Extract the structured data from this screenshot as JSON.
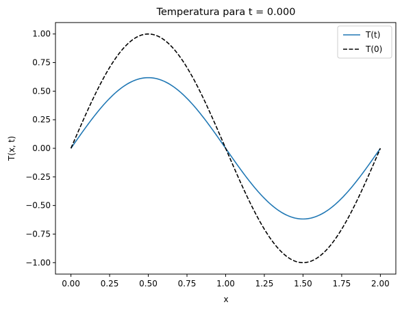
{
  "chart_data": {
    "type": "line",
    "title": "Temperatura para t = 0.000",
    "xlabel": "x",
    "ylabel": "T(x, t)",
    "xlim": [
      -0.1,
      2.1
    ],
    "ylim": [
      -1.1,
      1.1
    ],
    "xticks": [
      0.0,
      0.25,
      0.5,
      0.75,
      1.0,
      1.25,
      1.5,
      1.75,
      2.0
    ],
    "xtick_labels": [
      "0.00",
      "0.25",
      "0.50",
      "0.75",
      "1.00",
      "1.25",
      "1.50",
      "1.75",
      "2.00"
    ],
    "yticks": [
      -1.0,
      -0.75,
      -0.5,
      -0.25,
      0.0,
      0.25,
      0.5,
      0.75,
      1.0
    ],
    "ytick_labels": [
      "−1.00",
      "−0.75",
      "−0.50",
      "−0.25",
      "0.00",
      "0.25",
      "0.50",
      "0.75",
      "1.00"
    ],
    "grid": false,
    "legend_position": "top-right",
    "series": [
      {
        "name": "T(t)",
        "color": "#1f77b4",
        "style": "solid",
        "x": [
          0.0,
          0.1,
          0.2,
          0.3,
          0.4,
          0.5,
          0.6,
          0.7,
          0.8,
          0.9,
          1.0,
          1.1,
          1.2,
          1.3,
          1.4,
          1.5,
          1.6,
          1.7,
          1.8,
          1.9,
          2.0
        ],
        "y": [
          0.0,
          0.191,
          0.363,
          0.5,
          0.588,
          0.618,
          0.588,
          0.5,
          0.363,
          0.191,
          0.0,
          -0.191,
          -0.363,
          -0.5,
          -0.588,
          -0.618,
          -0.588,
          -0.5,
          -0.363,
          -0.191,
          0.0
        ]
      },
      {
        "name": "T(0)",
        "color": "#000000",
        "style": "dashed",
        "x": [
          0.0,
          0.1,
          0.2,
          0.3,
          0.4,
          0.5,
          0.6,
          0.7,
          0.8,
          0.9,
          1.0,
          1.1,
          1.2,
          1.3,
          1.4,
          1.5,
          1.6,
          1.7,
          1.8,
          1.9,
          2.0
        ],
        "y": [
          0.0,
          0.309,
          0.588,
          0.809,
          0.951,
          1.0,
          0.951,
          0.809,
          0.588,
          0.309,
          0.0,
          -0.309,
          -0.588,
          -0.809,
          -0.951,
          -1.0,
          -0.951,
          -0.809,
          -0.588,
          -0.309,
          0.0
        ]
      }
    ]
  }
}
